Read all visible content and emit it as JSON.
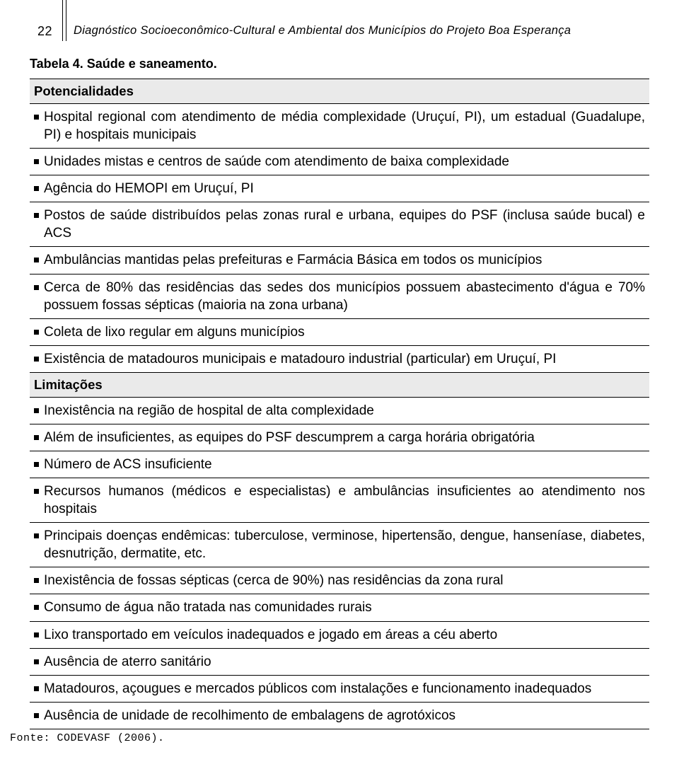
{
  "page_number": "22",
  "header_title": "Diagnóstico Socioeconômico-Cultural e Ambiental dos Municípios do Projeto  Boa Esperança",
  "table_caption": "Tabela 4. Saúde e saneamento.",
  "sections": {
    "potencialidades": {
      "title": "Potencialidades",
      "items": [
        "Hospital regional com atendimento de média complexidade (Uruçuí, PI), um estadual (Guadalupe, PI) e hospitais municipais",
        "Unidades mistas e centros de saúde com atendimento de baixa complexidade",
        "Agência do HEMOPI em Uruçuí, PI",
        "Postos de saúde distribuídos pelas zonas rural e urbana, equipes do PSF (inclusa saúde bucal) e ACS",
        "Ambulâncias mantidas pelas prefeituras e Farmácia Básica em todos os municípios",
        "Cerca de 80% das residências das sedes dos municípios possuem abastecimento d'água e 70% possuem fossas sépticas (maioria na zona urbana)",
        "Coleta de lixo regular em alguns municípios",
        "Existência de matadouros municipais e matadouro industrial (particular) em Uruçuí, PI"
      ]
    },
    "limitacoes": {
      "title": "Limitações",
      "items": [
        "Inexistência na região de hospital de alta complexidade",
        "Além de insuficientes, as equipes do PSF descumprem a carga horária obrigatória",
        "Número de ACS insuficiente",
        "Recursos humanos (médicos e especialistas) e ambulâncias insuficientes ao atendimento nos hospitais",
        "Principais doenças endêmicas: tuberculose, verminose, hipertensão, dengue, hanseníase, diabetes, desnutrição, dermatite, etc.",
        "Inexistência de fossas sépticas (cerca de 90%) nas residências da zona rural",
        "Consumo de água não tratada nas comunidades rurais",
        "Lixo transportado em veículos inadequados e jogado em áreas a céu aberto",
        "Ausência de aterro sanitário",
        "Matadouros, açougues e mercados públicos com instalações e funcionamento inadequados",
        "Ausência de unidade de recolhimento de embalagens de agrotóxicos"
      ]
    }
  },
  "source": "Fonte: CODEVASF (2006).",
  "colors": {
    "section_bg": "#eaeaea",
    "rule": "#000000",
    "text": "#000000",
    "background": "#ffffff"
  },
  "typography": {
    "body_fontsize_pt": 14,
    "caption_fontsize_pt": 13,
    "header_fontsize_pt": 12,
    "font_family": "Arial"
  }
}
